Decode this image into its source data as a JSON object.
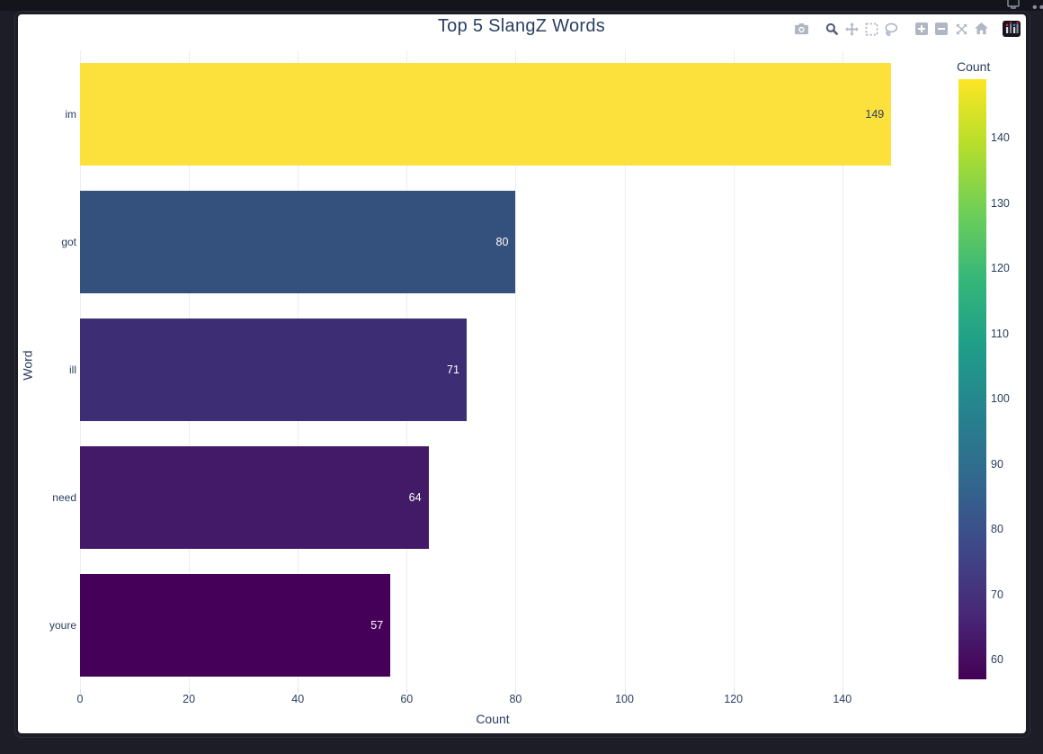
{
  "window": {
    "popout_icon": "window-popout",
    "more_icon_glyph": "•••"
  },
  "chart": {
    "title": "Top 5 SlangZ Words",
    "xaxis_title": "Count",
    "yaxis_title": "Word",
    "colorbar_title": "Count"
  },
  "modebar": {
    "groups": [
      [
        "camera"
      ],
      [
        "zoom",
        "pan",
        "box-select",
        "lasso-select"
      ],
      [
        "zoom-in",
        "zoom-out",
        "autoscale",
        "reset-axes"
      ],
      [
        "plotly-logo"
      ]
    ],
    "active": "zoom"
  },
  "chart_data": {
    "type": "bar",
    "orientation": "horizontal",
    "title": "Top 5 SlangZ Words",
    "xlabel": "Count",
    "ylabel": "Word",
    "categories": [
      "im",
      "got",
      "ill",
      "need",
      "youre"
    ],
    "values": [
      149,
      80,
      71,
      64,
      57
    ],
    "bar_labels": [
      "149",
      "80",
      "71",
      "64",
      "57"
    ],
    "bar_colors": [
      "#fce13c",
      "#34507d",
      "#3c2d74",
      "#431a67",
      "#45015a"
    ],
    "xticks": [
      0,
      20,
      40,
      60,
      80,
      100,
      120,
      140
    ],
    "xlim": [
      0,
      151.6
    ],
    "grid": true,
    "legend_position": "colorbar-right",
    "colorbar": {
      "title": "Count",
      "ticks": [
        140,
        130,
        120,
        110,
        100,
        90,
        80,
        70,
        60
      ],
      "cmin": 57,
      "cmax": 149,
      "colorscale": "viridis",
      "gradient_stops": [
        "#440154",
        "#482878",
        "#3e4989",
        "#31688e",
        "#26828e",
        "#1f9e89",
        "#35b779",
        "#6ece58",
        "#b5de2b",
        "#fde725"
      ]
    }
  },
  "colors": {
    "page_bg": "#1d1d27",
    "card_bg": "#ffffff",
    "text": "#2a3f5f",
    "gridline": "#e9edf5",
    "modebar_icon": "#b0b6c2",
    "modebar_active": "#4e5a75"
  }
}
